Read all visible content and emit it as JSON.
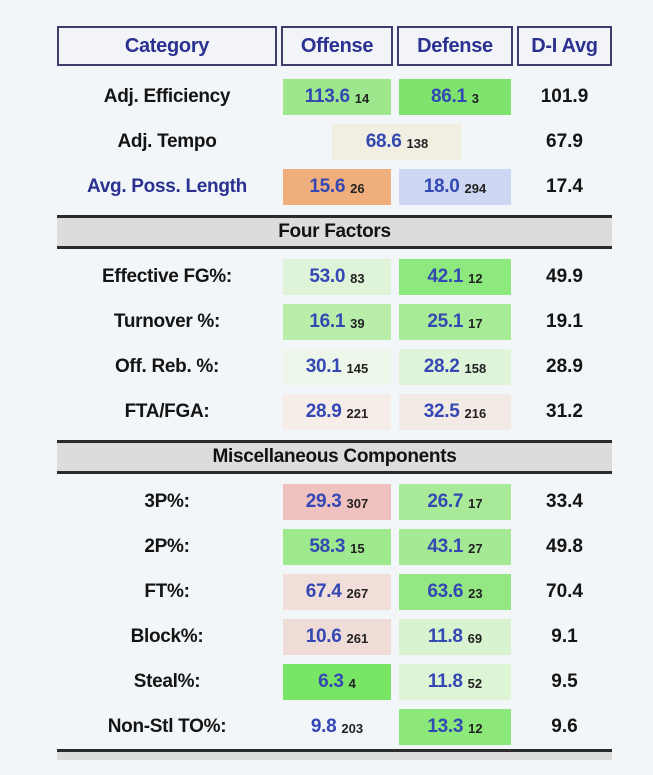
{
  "header": {
    "columns": [
      {
        "id": "category",
        "label": "Category"
      },
      {
        "id": "offense",
        "label": "Offense"
      },
      {
        "id": "defense",
        "label": "Defense"
      },
      {
        "id": "di-avg",
        "label": "D-I Avg"
      }
    ]
  },
  "colors": {
    "page_bg": "#f2f6f9",
    "header_border": "#3c3f6e",
    "header_text": "#2a3190",
    "value_text": "#3448b4",
    "rank_text": "#222222",
    "label_text": "#141414",
    "link_text": "#2a3190",
    "section_bg": "#dcdcdc"
  },
  "sections": [
    {
      "header": null,
      "rows": [
        {
          "label": "Adj. Efficiency",
          "link": false,
          "offense": {
            "value": "113.6",
            "rank": "14",
            "bg": "#9fe78c"
          },
          "defense": {
            "value": "86.1",
            "rank": "3",
            "bg": "#7fe46d"
          },
          "avg": "101.9"
        },
        {
          "label": "Adj. Tempo",
          "link": false,
          "combined": true,
          "offense": {
            "value": "68.6",
            "rank": "138",
            "bg": "#f0efe1"
          },
          "avg": "67.9"
        },
        {
          "label": "Avg. Poss. Length",
          "link": true,
          "offense": {
            "value": "15.6",
            "rank": "26",
            "bg": "#f0ae7d"
          },
          "defense": {
            "value": "18.0",
            "rank": "294",
            "bg": "#cdd6f2"
          },
          "avg": "17.4"
        }
      ]
    },
    {
      "header": "Four Factors",
      "rows": [
        {
          "label": "Effective FG%:",
          "link": false,
          "offense": {
            "value": "53.0",
            "rank": "83",
            "bg": "#def3d7"
          },
          "defense": {
            "value": "42.1",
            "rank": "12",
            "bg": "#8de87d"
          },
          "avg": "49.9"
        },
        {
          "label": "Turnover %:",
          "link": false,
          "offense": {
            "value": "16.1",
            "rank": "39",
            "bg": "#b9eeaa"
          },
          "defense": {
            "value": "25.1",
            "rank": "17",
            "bg": "#a8eb96"
          },
          "avg": "19.1"
        },
        {
          "label": "Off. Reb. %:",
          "link": false,
          "offense": {
            "value": "30.1",
            "rank": "145",
            "bg": "#edf7e9"
          },
          "defense": {
            "value": "28.2",
            "rank": "158",
            "bg": "#e0f4d9"
          },
          "avg": "28.9"
        },
        {
          "label": "FTA/FGA:",
          "link": false,
          "offense": {
            "value": "28.9",
            "rank": "221",
            "bg": "#f6ece8"
          },
          "defense": {
            "value": "32.5",
            "rank": "216",
            "bg": "#f4eae5"
          },
          "avg": "31.2"
        }
      ]
    },
    {
      "header": "Miscellaneous Components",
      "rows": [
        {
          "label": "3P%:",
          "link": false,
          "offense": {
            "value": "29.3",
            "rank": "307",
            "bg": "#f0c2bf"
          },
          "defense": {
            "value": "26.7",
            "rank": "17",
            "bg": "#a8ea97"
          },
          "avg": "33.4"
        },
        {
          "label": "2P%:",
          "link": false,
          "offense": {
            "value": "58.3",
            "rank": "15",
            "bg": "#9ee88d"
          },
          "defense": {
            "value": "43.1",
            "rank": "27",
            "bg": "#a5e995"
          },
          "avg": "49.8"
        },
        {
          "label": "FT%:",
          "link": false,
          "offense": {
            "value": "67.4",
            "rank": "267",
            "bg": "#f2ded9"
          },
          "defense": {
            "value": "63.6",
            "rank": "23",
            "bg": "#94e783"
          },
          "avg": "70.4"
        },
        {
          "label": "Block%:",
          "link": false,
          "offense": {
            "value": "10.6",
            "rank": "261",
            "bg": "#f0dcd6"
          },
          "defense": {
            "value": "11.8",
            "rank": "69",
            "bg": "#d8f3cf"
          },
          "avg": "9.1"
        },
        {
          "label": "Steal%:",
          "link": false,
          "offense": {
            "value": "6.3",
            "rank": "4",
            "bg": "#79e565"
          },
          "defense": {
            "value": "11.8",
            "rank": "52",
            "bg": "#ddf4d5"
          },
          "avg": "9.5"
        },
        {
          "label": "Non-Stl TO%:",
          "link": false,
          "offense": {
            "value": "9.8",
            "rank": "203",
            "bg": "transparent"
          },
          "defense": {
            "value": "13.3",
            "rank": "12",
            "bg": "#8ce979"
          },
          "avg": "9.6"
        }
      ]
    }
  ]
}
